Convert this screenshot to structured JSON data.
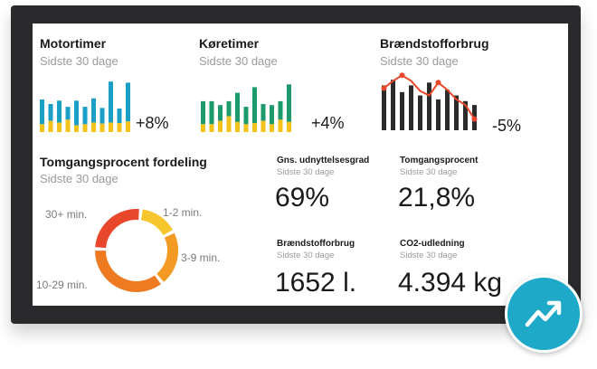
{
  "colors": {
    "teal": "#1b9fc6",
    "yellow": "#f4c21b",
    "green": "#1d9a6c",
    "dark": "#2b2b2b",
    "red": "#e8472b",
    "badge": "#1fa9c9"
  },
  "motortimer": {
    "title": "Motortimer",
    "subtitle": "Sidste 30 dage",
    "change": "+8%",
    "bars": [
      {
        "total": 0.58,
        "low": 0.14
      },
      {
        "total": 0.5,
        "low": 0.2
      },
      {
        "total": 0.56,
        "low": 0.17
      },
      {
        "total": 0.45,
        "low": 0.22
      },
      {
        "total": 0.56,
        "low": 0.12
      },
      {
        "total": 0.45,
        "low": 0.14
      },
      {
        "total": 0.6,
        "low": 0.17
      },
      {
        "total": 0.43,
        "low": 0.15
      },
      {
        "total": 0.9,
        "low": 0.17
      },
      {
        "total": 0.42,
        "low": 0.16
      },
      {
        "total": 0.88,
        "low": 0.19
      }
    ]
  },
  "koeretimer": {
    "title": "Køretimer",
    "subtitle": "Sidste 30 dage",
    "change": "+4%",
    "bars": [
      {
        "total": 0.55,
        "low": 0.14
      },
      {
        "total": 0.55,
        "low": 0.14
      },
      {
        "total": 0.48,
        "low": 0.2
      },
      {
        "total": 0.55,
        "low": 0.28
      },
      {
        "total": 0.7,
        "low": 0.18
      },
      {
        "total": 0.45,
        "low": 0.14
      },
      {
        "total": 0.8,
        "low": 0.16
      },
      {
        "total": 0.5,
        "low": 0.2
      },
      {
        "total": 0.48,
        "low": 0.14
      },
      {
        "total": 0.55,
        "low": 0.22
      },
      {
        "total": 0.85,
        "low": 0.18
      }
    ]
  },
  "braendstof_chart": {
    "title": "Brændstofforbrug",
    "subtitle": "Sidste 30 dage",
    "change": "-5%",
    "bars": [
      0.8,
      0.9,
      0.68,
      0.8,
      0.62,
      0.85,
      0.55,
      0.72,
      0.62,
      0.52,
      0.45
    ],
    "line": [
      0.75,
      0.88,
      0.98,
      0.88,
      0.7,
      0.62,
      0.85,
      0.72,
      0.55,
      0.45,
      0.2
    ]
  },
  "tomgang_fordeling": {
    "title": "Tomgangsprocent fordeling",
    "subtitle": "Sidste 30 dage",
    "segments": [
      {
        "label": "1-2 min.",
        "value": 14,
        "color": "#f5c62d"
      },
      {
        "label": "3-9 min.",
        "value": 20,
        "color": "#f39a24"
      },
      {
        "label": "10-29 min.",
        "value": 34,
        "color": "#ee7a22"
      },
      {
        "label": "30+ min.",
        "value": 24,
        "color": "#e8472b"
      }
    ]
  },
  "stats": {
    "udnyttelse": {
      "title": "Gns. udnyttelsesgrad",
      "subtitle": "Sidste 30 dage",
      "value": "69%"
    },
    "tomgang": {
      "title": "Tomgangsprocent",
      "subtitle": "Sidste 30 dage",
      "value": "21,8%"
    },
    "braendstof": {
      "title": "Brændstofforbrug",
      "subtitle": "Sidste 30 dage",
      "value": "1652 l."
    },
    "co2": {
      "title": "CO2-udledning",
      "subtitle": "Sidste 30 dage",
      "value": "4.394 kg"
    }
  },
  "badge": {
    "icon": "trend-up-icon"
  }
}
